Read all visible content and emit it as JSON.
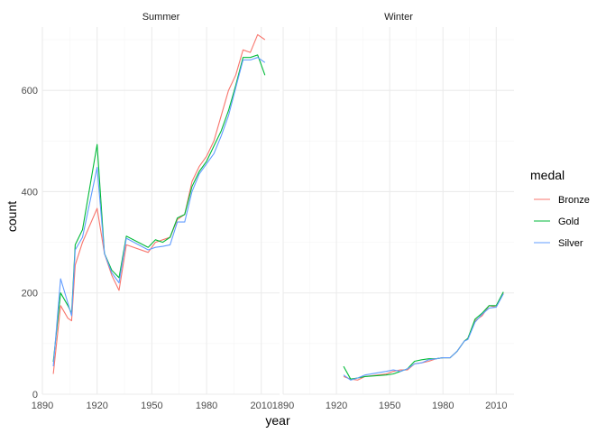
{
  "chart_data": {
    "type": "line",
    "xlabel": "year",
    "ylabel": "count",
    "ylim": [
      0,
      725
    ],
    "xlim": [
      1890,
      2020
    ],
    "x_ticks": [
      1890,
      1920,
      1950,
      1980,
      2010
    ],
    "y_ticks": [
      0,
      200,
      400,
      600
    ],
    "grid": true,
    "legend": {
      "title": "medal",
      "position": "right"
    },
    "colors": {
      "Bronze": "#F8766D",
      "Gold": "#00BA38",
      "Silver": "#619CFF"
    },
    "facets": [
      {
        "label": "Summer",
        "series": [
          {
            "name": "Bronze",
            "x": [
              1896,
              1900,
              1904,
              1906,
              1908,
              1912,
              1920,
              1924,
              1928,
              1932,
              1936,
              1948,
              1952,
              1956,
              1960,
              1964,
              1968,
              1972,
              1976,
              1980,
              1984,
              1988,
              1992,
              1996,
              2000,
              2004,
              2008,
              2012
            ],
            "y": [
              40,
              175,
              150,
              145,
              255,
              300,
              367,
              278,
              235,
              205,
              295,
              280,
              300,
              305,
              310,
              345,
              355,
              420,
              450,
              470,
              500,
              550,
              600,
              630,
              680,
              675,
              710,
              700
            ]
          },
          {
            "name": "Gold",
            "x": [
              1896,
              1900,
              1904,
              1906,
              1908,
              1912,
              1920,
              1924,
              1928,
              1932,
              1936,
              1948,
              1952,
              1956,
              1960,
              1964,
              1968,
              1972,
              1976,
              1980,
              1984,
              1988,
              1992,
              1996,
              2000,
              2004,
              2008,
              2012
            ],
            "y": [
              64,
              200,
              175,
              160,
              295,
              325,
              493,
              278,
              245,
              230,
              312,
              290,
              305,
              300,
              310,
              348,
              355,
              410,
              440,
              460,
              490,
              520,
              560,
              610,
              665,
              665,
              670,
              630
            ]
          },
          {
            "name": "Silver",
            "x": [
              1896,
              1900,
              1904,
              1906,
              1908,
              1912,
              1920,
              1924,
              1928,
              1932,
              1936,
              1948,
              1952,
              1956,
              1960,
              1964,
              1968,
              1972,
              1976,
              1980,
              1984,
              1988,
              1992,
              1996,
              2000,
              2004,
              2008,
              2012
            ],
            "y": [
              55,
              228,
              180,
              155,
              285,
              310,
              448,
              278,
              240,
              220,
              308,
              285,
              290,
              292,
              295,
              340,
              340,
              400,
              435,
              455,
              475,
              510,
              550,
              605,
              660,
              660,
              665,
              655
            ]
          }
        ]
      },
      {
        "label": "Winter",
        "series": [
          {
            "name": "Bronze",
            "x": [
              1924,
              1928,
              1932,
              1936,
              1948,
              1952,
              1956,
              1960,
              1964,
              1968,
              1972,
              1976,
              1980,
              1984,
              1988,
              1992,
              1994,
              1998,
              2002,
              2006,
              2010,
              2014
            ],
            "y": [
              35,
              30,
              28,
              35,
              40,
              45,
              48,
              48,
              60,
              62,
              65,
              70,
              72,
              72,
              85,
              105,
              110,
              145,
              155,
              175,
              172,
              200
            ]
          },
          {
            "name": "Gold",
            "x": [
              1924,
              1928,
              1932,
              1936,
              1948,
              1952,
              1956,
              1960,
              1964,
              1968,
              1972,
              1976,
              1980,
              1984,
              1988,
              1992,
              1994,
              1998,
              2002,
              2006,
              2010,
              2014
            ],
            "y": [
              55,
              30,
              32,
              35,
              38,
              40,
              45,
              50,
              65,
              68,
              70,
              70,
              72,
              72,
              85,
              105,
              110,
              148,
              160,
              175,
              175,
              202
            ]
          },
          {
            "name": "Silver",
            "x": [
              1924,
              1928,
              1932,
              1936,
              1948,
              1952,
              1956,
              1960,
              1964,
              1968,
              1972,
              1976,
              1980,
              1984,
              1988,
              1992,
              1994,
              1998,
              2002,
              2006,
              2010,
              2014
            ],
            "y": [
              38,
              28,
              32,
              38,
              45,
              48,
              45,
              50,
              60,
              62,
              68,
              70,
              72,
              72,
              85,
              105,
              108,
              142,
              158,
              170,
              172,
              198
            ]
          }
        ]
      }
    ]
  }
}
